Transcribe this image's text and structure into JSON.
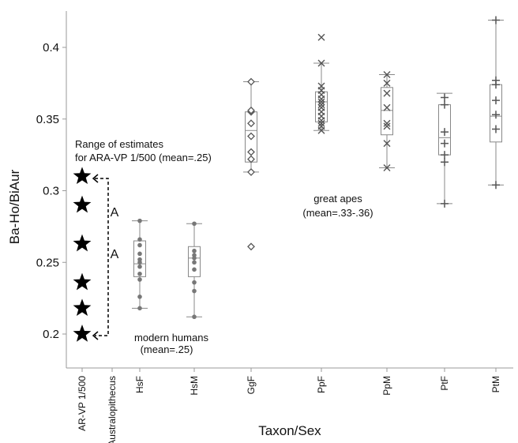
{
  "chart_data": {
    "type": "box",
    "xlabel": "Taxon/Sex",
    "ylabel": "Ba-Ho/BiAur",
    "ylim": [
      0.18,
      0.425
    ],
    "yticks": [
      0.2,
      0.25,
      0.3,
      0.35,
      0.4
    ],
    "ytick_labels": [
      "0.2",
      "0.25",
      "0.3",
      "0.35",
      "0.4"
    ],
    "categories": [
      "AR-VP 1/500",
      "Australopithecus",
      "HsF",
      "HsM",
      "GgF",
      "PpF",
      "PpM",
      "PtF",
      "PtM"
    ],
    "colors": {
      "box": "#888888",
      "points": "#777777",
      "markers": "#555555",
      "stars": "#000000"
    },
    "fossil_estimates": {
      "category": "AR-VP 1/500",
      "marker": "star",
      "values": [
        0.31,
        0.29,
        0.263,
        0.236,
        0.218,
        0.2
      ]
    },
    "series": [
      {
        "category": "HsF",
        "marker": "dot",
        "whisker_low": 0.218,
        "q1": 0.24,
        "median": 0.249,
        "q3": 0.265,
        "whisker_high": 0.279,
        "points": [
          0.218,
          0.226,
          0.238,
          0.242,
          0.247,
          0.25,
          0.252,
          0.256,
          0.262,
          0.266,
          0.279
        ]
      },
      {
        "category": "HsM",
        "marker": "dot",
        "whisker_low": 0.212,
        "q1": 0.24,
        "median": 0.253,
        "q3": 0.261,
        "whisker_high": 0.277,
        "points": [
          0.212,
          0.23,
          0.236,
          0.245,
          0.25,
          0.253,
          0.255,
          0.258,
          0.277
        ]
      },
      {
        "category": "GgF",
        "marker": "diamond",
        "whisker_low": 0.313,
        "q1": 0.32,
        "median": 0.342,
        "q3": 0.355,
        "whisker_high": 0.376,
        "points": [
          0.261,
          0.313,
          0.322,
          0.327,
          0.338,
          0.347,
          0.355,
          0.356,
          0.376
        ]
      },
      {
        "category": "PpF",
        "marker": "x",
        "whisker_low": 0.342,
        "q1": 0.348,
        "median": 0.362,
        "q3": 0.369,
        "whisker_high": 0.389,
        "points": [
          0.342,
          0.345,
          0.347,
          0.349,
          0.352,
          0.355,
          0.358,
          0.36,
          0.362,
          0.364,
          0.367,
          0.37,
          0.373,
          0.389,
          0.407
        ]
      },
      {
        "category": "PpM",
        "marker": "x",
        "whisker_low": 0.316,
        "q1": 0.339,
        "median": 0.356,
        "q3": 0.372,
        "whisker_high": 0.381,
        "points": [
          0.316,
          0.333,
          0.345,
          0.347,
          0.358,
          0.368,
          0.375,
          0.381
        ]
      },
      {
        "category": "PtF",
        "marker": "plus",
        "whisker_low": 0.291,
        "q1": 0.325,
        "median": 0.337,
        "q3": 0.36,
        "whisker_high": 0.368,
        "points": [
          0.291,
          0.32,
          0.325,
          0.333,
          0.341,
          0.36,
          0.365
        ]
      },
      {
        "category": "PtM",
        "marker": "plus",
        "whisker_low": 0.304,
        "q1": 0.334,
        "median": 0.352,
        "q3": 0.374,
        "whisker_high": 0.419,
        "points": [
          0.304,
          0.343,
          0.353,
          0.363,
          0.374,
          0.377,
          0.419
        ]
      }
    ],
    "annotations": {
      "fossil_range_title": "Range of estimates",
      "fossil_range_subtitle": "for ARA-VP 1/500 (mean=.25)",
      "great_apes": "great apes",
      "great_apes_mean": "(mean=.33-.36)",
      "modern_humans": "modern humans",
      "modern_humans_mean": "(mean=.25)",
      "letter_upper": "A",
      "letter_lower": "A"
    }
  }
}
